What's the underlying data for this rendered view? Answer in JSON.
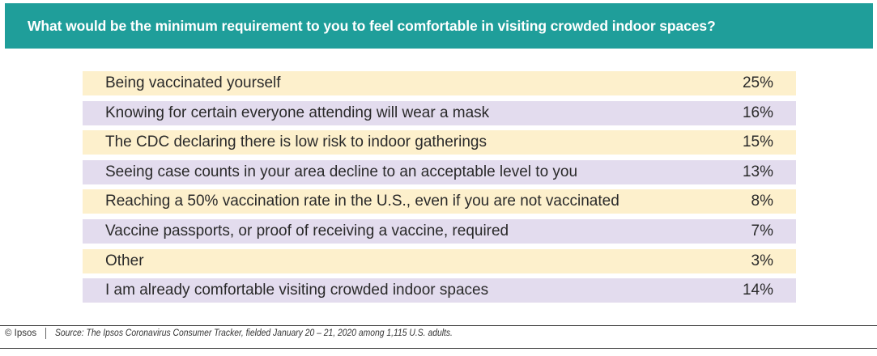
{
  "title": "What would be the minimum requirement to you to feel comfortable in visiting crowded indoor spaces?",
  "chart_data": {
    "type": "table",
    "title": "What would be the minimum requirement to you to feel comfortable in visiting crowded indoor spaces?",
    "categories": [
      "Being vaccinated yourself",
      "Knowing for certain everyone attending will wear a mask",
      "The CDC declaring there is low risk to indoor gatherings",
      "Seeing case counts in your area decline to an acceptable level to you",
      "Reaching a 50% vaccination rate in the U.S., even if you are not vaccinated",
      "Vaccine passports, or proof of receiving a vaccine, required",
      "Other",
      "I am already comfortable visiting crowded indoor spaces"
    ],
    "values": [
      "25%",
      "16%",
      "15%",
      "13%",
      "8%",
      "7%",
      "3%",
      "14%"
    ],
    "row_colors": [
      "#fdf0cc",
      "#e3dcee"
    ]
  },
  "footer": {
    "brand": "© Ipsos",
    "source": "Source: The Ipsos Coronavirus Consumer Tracker, fielded January 20 – 21, 2020 among 1,115 U.S. adults."
  },
  "colors": {
    "header": "#1f9e9a"
  }
}
